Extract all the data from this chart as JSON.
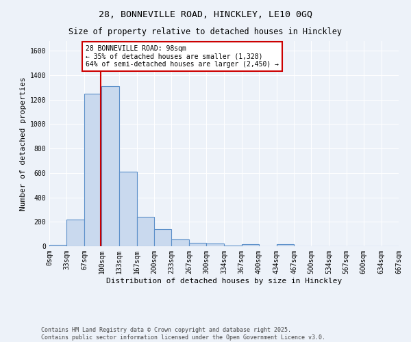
{
  "title_line1": "28, BONNEVILLE ROAD, HINCKLEY, LE10 0GQ",
  "title_line2": "Size of property relative to detached houses in Hinckley",
  "xlabel": "Distribution of detached houses by size in Hinckley",
  "ylabel": "Number of detached properties",
  "bar_color": "#c9d9ee",
  "bar_edge_color": "#5b8fc9",
  "background_color": "#edf2f9",
  "grid_color": "#d0d8e8",
  "bin_edges": [
    0,
    33,
    67,
    100,
    133,
    167,
    200,
    233,
    267,
    300,
    334,
    367,
    400,
    434,
    467,
    500,
    534,
    567,
    600,
    634,
    667
  ],
  "bar_heights": [
    10,
    220,
    1250,
    1310,
    610,
    240,
    140,
    55,
    30,
    25,
    5,
    15,
    2,
    15,
    0,
    0,
    0,
    0,
    0,
    0
  ],
  "tick_labels": [
    "0sqm",
    "33sqm",
    "67sqm",
    "100sqm",
    "133sqm",
    "167sqm",
    "200sqm",
    "233sqm",
    "267sqm",
    "300sqm",
    "334sqm",
    "367sqm",
    "400sqm",
    "434sqm",
    "467sqm",
    "500sqm",
    "534sqm",
    "567sqm",
    "600sqm",
    "634sqm",
    "667sqm"
  ],
  "red_line_x": 98,
  "annotation_text": "28 BONNEVILLE ROAD: 98sqm\n← 35% of detached houses are smaller (1,328)\n64% of semi-detached houses are larger (2,450) →",
  "annotation_box_color": "#ffffff",
  "annotation_box_edge_color": "#cc0000",
  "red_line_color": "#cc0000",
  "ylim": [
    0,
    1680
  ],
  "yticks": [
    0,
    200,
    400,
    600,
    800,
    1000,
    1200,
    1400,
    1600
  ],
  "footer_text": "Contains HM Land Registry data © Crown copyright and database right 2025.\nContains public sector information licensed under the Open Government Licence v3.0.",
  "title_fontsize": 9.5,
  "subtitle_fontsize": 8.5,
  "axis_label_fontsize": 8,
  "tick_fontsize": 7,
  "annotation_fontsize": 7
}
